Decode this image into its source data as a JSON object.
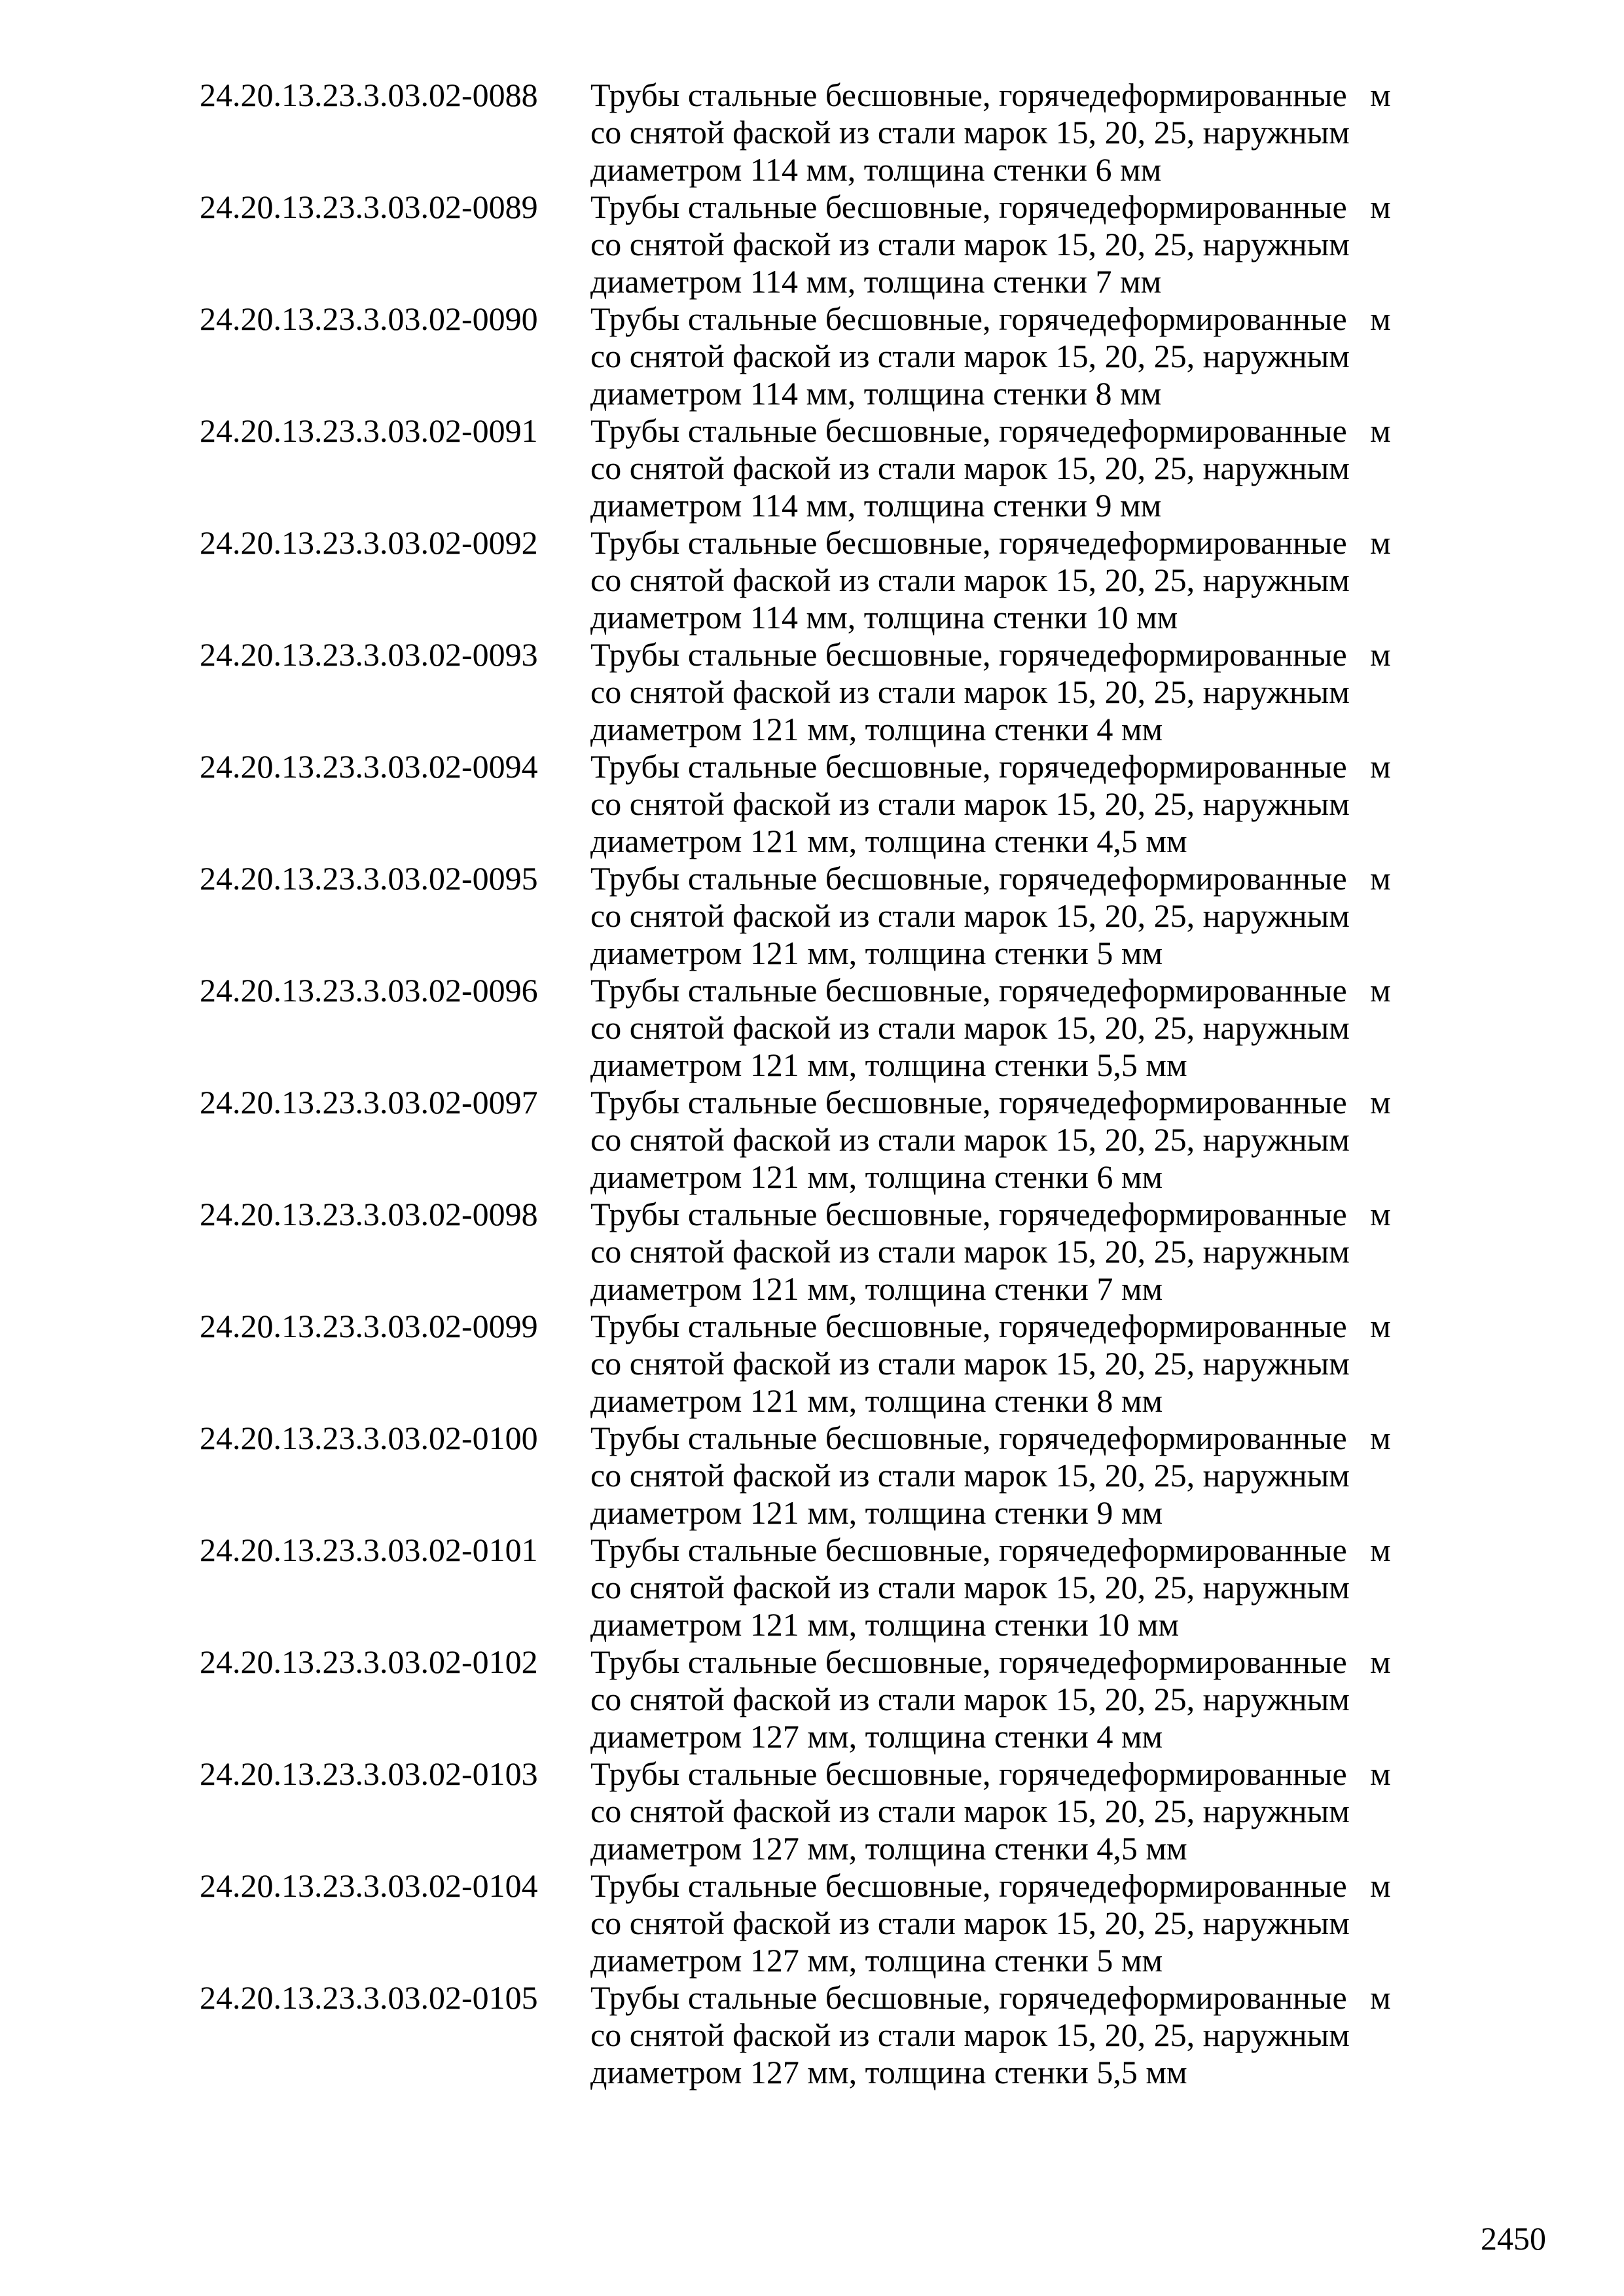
{
  "entries": [
    {
      "code": "24.20.13.23.3.03.02-0088",
      "lines": [
        "Трубы стальные бесшовные, горячедеформированные",
        "со снятой фаской из стали марок 15, 20, 25, наружным",
        "диаметром 114 мм, толщина стенки 6 мм"
      ],
      "unit": "м"
    },
    {
      "code": "24.20.13.23.3.03.02-0089",
      "lines": [
        "Трубы стальные бесшовные, горячедеформированные",
        "со снятой фаской из стали марок 15, 20, 25, наружным",
        "диаметром 114 мм, толщина стенки 7 мм"
      ],
      "unit": "м"
    },
    {
      "code": "24.20.13.23.3.03.02-0090",
      "lines": [
        "Трубы стальные бесшовные, горячедеформированные",
        "со снятой фаской из стали марок 15, 20, 25, наружным",
        "диаметром 114 мм, толщина стенки 8 мм"
      ],
      "unit": "м"
    },
    {
      "code": "24.20.13.23.3.03.02-0091",
      "lines": [
        "Трубы стальные бесшовные, горячедеформированные",
        "со снятой фаской из стали марок 15, 20, 25, наружным",
        "диаметром 114 мм, толщина стенки 9 мм"
      ],
      "unit": "м"
    },
    {
      "code": "24.20.13.23.3.03.02-0092",
      "lines": [
        "Трубы стальные бесшовные, горячедеформированные",
        "со снятой фаской из стали марок 15, 20, 25, наружным",
        "диаметром 114 мм, толщина стенки 10 мм"
      ],
      "unit": "м"
    },
    {
      "code": "24.20.13.23.3.03.02-0093",
      "lines": [
        "Трубы стальные бесшовные, горячедеформированные",
        "со снятой фаской из стали марок 15, 20, 25, наружным",
        "диаметром 121 мм, толщина стенки 4 мм"
      ],
      "unit": "м"
    },
    {
      "code": "24.20.13.23.3.03.02-0094",
      "lines": [
        "Трубы стальные бесшовные, горячедеформированные",
        "со снятой фаской из стали марок 15, 20, 25, наружным",
        "диаметром 121 мм, толщина стенки 4,5 мм"
      ],
      "unit": "м"
    },
    {
      "code": "24.20.13.23.3.03.02-0095",
      "lines": [
        "Трубы стальные бесшовные, горячедеформированные",
        "со снятой фаской из стали марок 15, 20, 25, наружным",
        "диаметром 121 мм, толщина стенки 5 мм"
      ],
      "unit": "м"
    },
    {
      "code": "24.20.13.23.3.03.02-0096",
      "lines": [
        "Трубы стальные бесшовные, горячедеформированные",
        "со снятой фаской из стали марок 15, 20, 25, наружным",
        "диаметром 121 мм, толщина стенки 5,5 мм"
      ],
      "unit": "м"
    },
    {
      "code": "24.20.13.23.3.03.02-0097",
      "lines": [
        "Трубы стальные бесшовные, горячедеформированные",
        "со снятой фаской из стали марок 15, 20, 25, наружным",
        "диаметром 121 мм, толщина стенки 6 мм"
      ],
      "unit": "м"
    },
    {
      "code": "24.20.13.23.3.03.02-0098",
      "lines": [
        "Трубы стальные бесшовные, горячедеформированные",
        "со снятой фаской из стали марок 15, 20, 25, наружным",
        "диаметром 121 мм, толщина стенки 7 мм"
      ],
      "unit": "м"
    },
    {
      "code": "24.20.13.23.3.03.02-0099",
      "lines": [
        "Трубы стальные бесшовные, горячедеформированные",
        "со снятой фаской из стали марок 15, 20, 25, наружным",
        "диаметром 121 мм, толщина стенки 8 мм"
      ],
      "unit": "м"
    },
    {
      "code": "24.20.13.23.3.03.02-0100",
      "lines": [
        "Трубы стальные бесшовные, горячедеформированные",
        "со снятой фаской из стали марок 15, 20, 25, наружным",
        "диаметром 121 мм, толщина стенки 9 мм"
      ],
      "unit": "м"
    },
    {
      "code": "24.20.13.23.3.03.02-0101",
      "lines": [
        "Трубы стальные бесшовные, горячедеформированные",
        "со снятой фаской из стали марок 15, 20, 25, наружным",
        "диаметром 121 мм, толщина стенки 10 мм"
      ],
      "unit": "м"
    },
    {
      "code": "24.20.13.23.3.03.02-0102",
      "lines": [
        "Трубы стальные бесшовные, горячедеформированные",
        "со снятой фаской из стали марок 15, 20, 25, наружным",
        "диаметром 127 мм, толщина стенки 4 мм"
      ],
      "unit": "м"
    },
    {
      "code": "24.20.13.23.3.03.02-0103",
      "lines": [
        "Трубы стальные бесшовные, горячедеформированные",
        "со снятой фаской из стали марок 15, 20, 25, наружным",
        "диаметром 127 мм, толщина стенки 4,5 мм"
      ],
      "unit": "м"
    },
    {
      "code": "24.20.13.23.3.03.02-0104",
      "lines": [
        "Трубы стальные бесшовные, горячедеформированные",
        "со снятой фаской из стали марок 15, 20, 25, наружным",
        "диаметром 127 мм, толщина стенки 5 мм"
      ],
      "unit": "м"
    },
    {
      "code": "24.20.13.23.3.03.02-0105",
      "lines": [
        "Трубы стальные бесшовные, горячедеформированные",
        "со снятой фаской из стали марок 15, 20, 25, наружным",
        "диаметром 127 мм, толщина стенки 5,5 мм"
      ],
      "unit": "м"
    }
  ],
  "page_number": "2450"
}
